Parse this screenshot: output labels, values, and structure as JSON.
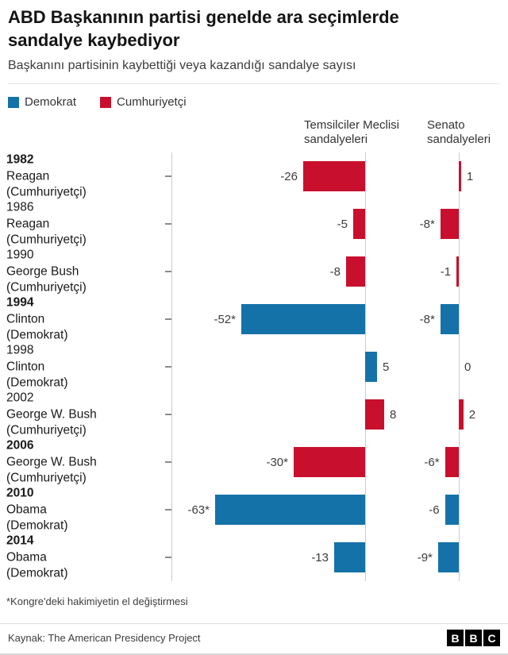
{
  "header": {
    "title": "ABD Başkanının partisi genelde ara seçimlerde sandalye kaybediyor",
    "subtitle": "Başkanını partisinin kaybettiği veya kazandığı sandalye sayısı"
  },
  "legend": [
    {
      "label": "Demokrat",
      "color": "#1572A8"
    },
    {
      "label": "Cumhuriyetçi",
      "color": "#C8102E"
    }
  ],
  "chart_data": {
    "type": "bar",
    "orientation": "horizontal",
    "colors": {
      "dem": "#1572A8",
      "rep": "#C8102E"
    },
    "group_headers": [
      {
        "label": "Temsilciler Meclisi sandalyeleri",
        "lines": [
          "Temsilciler Meclisi",
          "sandalyeleri"
        ]
      },
      {
        "label": "Senato sandalyeleri",
        "lines": [
          "Senato",
          "sandalyeleri"
        ]
      }
    ],
    "rows": [
      {
        "year": "1982",
        "president": "Reagan",
        "party_label": "(Cumhuriyetçi)",
        "party": "rep",
        "bold": true,
        "house": -26,
        "house_label": "-26",
        "senate": 1,
        "senate_label": "1"
      },
      {
        "year": "1986",
        "president": "Reagan",
        "party_label": "(Cumhuriyetçi)",
        "party": "rep",
        "bold": false,
        "house": -5,
        "house_label": "-5",
        "senate": -8,
        "senate_label": "-8*"
      },
      {
        "year": "1990",
        "president": "George Bush",
        "party_label": "(Cumhuriyetçi)",
        "party": "rep",
        "bold": false,
        "house": -8,
        "house_label": "-8",
        "senate": -1,
        "senate_label": "-1"
      },
      {
        "year": "1994",
        "president": "Clinton",
        "party_label": "(Demokrat)",
        "party": "dem",
        "bold": true,
        "house": -52,
        "house_label": "-52*",
        "senate": -8,
        "senate_label": "-8*"
      },
      {
        "year": "1998",
        "president": "Clinton",
        "party_label": "(Demokrat)",
        "party": "dem",
        "bold": false,
        "house": 5,
        "house_label": "5",
        "senate": 0,
        "senate_label": "0"
      },
      {
        "year": "2002",
        "president": "George W. Bush",
        "party_label": "(Cumhuriyetçi)",
        "party": "rep",
        "bold": false,
        "house": 8,
        "house_label": "8",
        "senate": 2,
        "senate_label": "2"
      },
      {
        "year": "2006",
        "president": "George W. Bush",
        "party_label": "(Cumhuriyetçi)",
        "party": "rep",
        "bold": true,
        "house": -30,
        "house_label": "-30*",
        "senate": -6,
        "senate_label": "-6*"
      },
      {
        "year": "2010",
        "president": "Obama",
        "party_label": "(Demokrat)",
        "party": "dem",
        "bold": true,
        "house": -63,
        "house_label": "-63*",
        "senate": -6,
        "senate_label": "-6"
      },
      {
        "year": "2014",
        "president": "Obama",
        "party_label": "(Demokrat)",
        "party": "dem",
        "bold": true,
        "house": -13,
        "house_label": "-13",
        "senate": -9,
        "senate_label": "-9*"
      }
    ],
    "footnote": "*Kongre'deki hakimiyetin el değiştirmesi"
  },
  "footer": {
    "source": "Kaynak: The American Presidency Project",
    "logo_letters": [
      "B",
      "B",
      "C"
    ]
  }
}
